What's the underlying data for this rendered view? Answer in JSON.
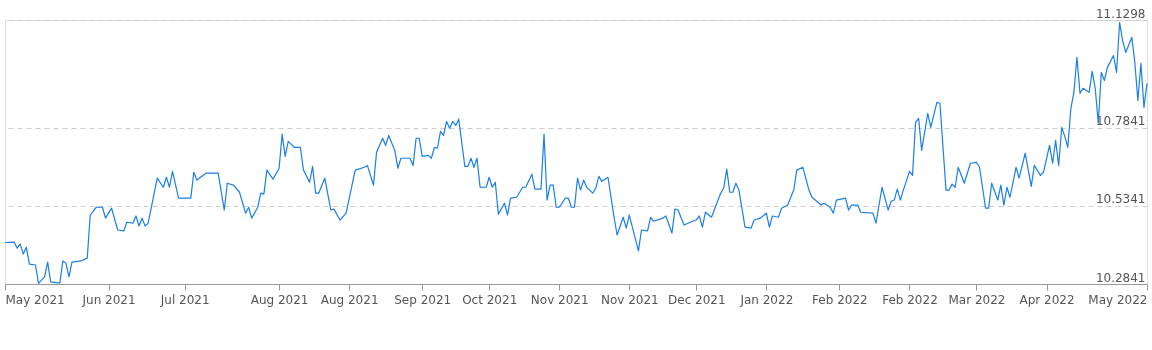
{
  "chart_data": {
    "type": "line",
    "x": [
      "2021-05-03",
      "2021-05-06",
      "2021-05-07",
      "2021-05-08",
      "2021-05-09",
      "2021-05-10",
      "2021-05-11",
      "2021-05-13",
      "2021-05-14",
      "2021-05-16",
      "2021-05-17",
      "2021-05-18",
      "2021-05-21",
      "2021-05-22",
      "2021-05-23",
      "2021-05-24",
      "2021-05-25",
      "2021-05-28",
      "2021-05-30",
      "2021-05-31",
      "2021-06-02",
      "2021-06-04",
      "2021-06-05",
      "2021-06-07",
      "2021-06-09",
      "2021-06-11",
      "2021-06-12",
      "2021-06-14",
      "2021-06-15",
      "2021-06-16",
      "2021-06-17",
      "2021-06-18",
      "2021-06-19",
      "2021-06-22",
      "2021-06-24",
      "2021-06-25",
      "2021-06-26",
      "2021-06-27",
      "2021-06-29",
      "2021-07-01",
      "2021-07-03",
      "2021-07-04",
      "2021-07-05",
      "2021-07-08",
      "2021-07-10",
      "2021-07-12",
      "2021-07-14",
      "2021-07-15",
      "2021-07-17",
      "2021-07-19",
      "2021-07-21",
      "2021-07-22",
      "2021-07-23",
      "2021-07-25",
      "2021-07-26",
      "2021-07-27",
      "2021-07-28",
      "2021-07-30",
      "2021-08-01",
      "2021-08-02",
      "2021-08-03",
      "2021-08-04",
      "2021-08-06",
      "2021-08-08",
      "2021-08-09",
      "2021-08-11",
      "2021-08-12",
      "2021-08-13",
      "2021-08-14",
      "2021-08-16",
      "2021-08-18",
      "2021-08-19",
      "2021-08-21",
      "2021-08-23",
      "2021-08-26",
      "2021-08-29",
      "2021-08-30",
      "2021-09-01",
      "2021-09-02",
      "2021-09-04",
      "2021-09-05",
      "2021-09-06",
      "2021-09-08",
      "2021-09-09",
      "2021-09-10",
      "2021-09-13",
      "2021-09-14",
      "2021-09-15",
      "2021-09-16",
      "2021-09-17",
      "2021-09-19",
      "2021-09-20",
      "2021-09-21",
      "2021-09-22",
      "2021-09-23",
      "2021-09-24",
      "2021-09-25",
      "2021-09-26",
      "2021-09-27",
      "2021-09-28",
      "2021-09-29",
      "2021-10-01",
      "2021-10-02",
      "2021-10-03",
      "2021-10-04",
      "2021-10-05",
      "2021-10-06",
      "2021-10-08",
      "2021-10-09",
      "2021-10-10",
      "2021-10-11",
      "2021-10-12",
      "2021-10-14",
      "2021-10-15",
      "2021-10-16",
      "2021-10-18",
      "2021-10-20",
      "2021-10-21",
      "2021-10-23",
      "2021-10-24",
      "2021-10-26",
      "2021-10-27",
      "2021-10-28",
      "2021-10-29",
      "2021-10-30",
      "2021-10-31",
      "2021-11-01",
      "2021-11-03",
      "2021-11-04",
      "2021-11-05",
      "2021-11-06",
      "2021-11-07",
      "2021-11-08",
      "2021-11-09",
      "2021-11-10",
      "2021-11-12",
      "2021-11-13",
      "2021-11-14",
      "2021-11-15",
      "2021-11-17",
      "2021-11-19",
      "2021-11-20",
      "2021-11-22",
      "2021-11-23",
      "2021-11-24",
      "2021-11-27",
      "2021-11-28",
      "2021-11-30",
      "2021-12-01",
      "2021-12-02",
      "2021-12-05",
      "2021-12-06",
      "2021-12-08",
      "2021-12-09",
      "2021-12-10",
      "2021-12-12",
      "2021-12-14",
      "2021-12-16",
      "2021-12-17",
      "2021-12-18",
      "2021-12-19",
      "2021-12-21",
      "2021-12-24",
      "2021-12-25",
      "2021-12-26",
      "2021-12-27",
      "2021-12-28",
      "2021-12-29",
      "2021-12-30",
      "2022-01-01",
      "2022-01-03",
      "2022-01-04",
      "2022-01-06",
      "2022-01-08",
      "2022-01-09",
      "2022-01-10",
      "2022-01-12",
      "2022-01-13",
      "2022-01-15",
      "2022-01-17",
      "2022-01-18",
      "2022-01-20",
      "2022-01-22",
      "2022-01-23",
      "2022-01-26",
      "2022-01-27",
      "2022-01-29",
      "2022-01-30",
      "2022-01-31",
      "2022-02-03",
      "2022-02-04",
      "2022-02-05",
      "2022-02-07",
      "2022-02-08",
      "2022-02-12",
      "2022-02-13",
      "2022-02-15",
      "2022-02-17",
      "2022-02-18",
      "2022-02-19",
      "2022-02-20",
      "2022-02-21",
      "2022-02-22",
      "2022-02-24",
      "2022-02-25",
      "2022-02-26",
      "2022-02-27",
      "2022-02-28",
      "2022-03-02",
      "2022-03-03",
      "2022-03-05",
      "2022-03-06",
      "2022-03-08",
      "2022-03-09",
      "2022-03-10",
      "2022-03-11",
      "2022-03-12",
      "2022-03-14",
      "2022-03-15",
      "2022-03-16",
      "2022-03-18",
      "2022-03-19",
      "2022-03-21",
      "2022-03-22",
      "2022-03-23",
      "2022-03-25",
      "2022-03-26",
      "2022-03-27",
      "2022-03-28",
      "2022-03-29",
      "2022-03-31",
      "2022-04-01",
      "2022-04-03",
      "2022-04-05",
      "2022-04-06",
      "2022-04-08",
      "2022-04-09",
      "2022-04-11",
      "2022-04-12",
      "2022-04-13",
      "2022-04-14",
      "2022-04-15",
      "2022-04-16",
      "2022-04-17",
      "2022-04-18",
      "2022-04-19",
      "2022-04-20",
      "2022-04-21",
      "2022-04-22",
      "2022-04-24",
      "2022-04-25",
      "2022-04-26",
      "2022-04-27",
      "2022-04-28",
      "2022-04-29",
      "2022-04-30",
      "2022-05-02",
      "2022-05-03",
      "2022-05-04",
      "2022-05-05",
      "2022-05-06",
      "2022-05-08",
      "2022-05-09",
      "2022-05-10",
      "2022-05-11",
      "2022-05-12",
      "2022-05-13"
    ],
    "series": [
      {
        "color": "#1a7fe8",
        "values": [
          10.417,
          10.418,
          10.399,
          10.412,
          10.38,
          10.402,
          10.348,
          10.345,
          10.286,
          10.307,
          10.354,
          10.291,
          10.287,
          10.358,
          10.351,
          10.307,
          10.354,
          10.358,
          10.367,
          10.505,
          10.53,
          10.53,
          10.495,
          10.527,
          10.457,
          10.454,
          10.482,
          10.479,
          10.502,
          10.47,
          10.495,
          10.47,
          10.479,
          10.623,
          10.594,
          10.626,
          10.594,
          10.645,
          10.559,
          10.559,
          10.559,
          10.642,
          10.617,
          10.639,
          10.639,
          10.639,
          10.521,
          10.607,
          10.601,
          10.578,
          10.511,
          10.53,
          10.495,
          10.53,
          10.575,
          10.572,
          10.649,
          10.62,
          10.655,
          10.764,
          10.693,
          10.741,
          10.722,
          10.722,
          10.649,
          10.61,
          10.661,
          10.575,
          10.575,
          10.623,
          10.521,
          10.524,
          10.489,
          10.511,
          10.649,
          10.658,
          10.664,
          10.601,
          10.706,
          10.751,
          10.728,
          10.76,
          10.712,
          10.655,
          10.687,
          10.687,
          10.664,
          10.751,
          10.751,
          10.693,
          10.696,
          10.687,
          10.722,
          10.719,
          10.773,
          10.76,
          10.805,
          10.783,
          10.805,
          10.792,
          10.812,
          10.661,
          10.661,
          10.687,
          10.658,
          10.687,
          10.594,
          10.594,
          10.626,
          10.594,
          10.61,
          10.508,
          10.543,
          10.505,
          10.559,
          10.562,
          10.594,
          10.594,
          10.636,
          10.588,
          10.588,
          10.764,
          10.553,
          10.601,
          10.601,
          10.53,
          10.53,
          10.559,
          10.559,
          10.53,
          10.53,
          10.623,
          10.585,
          10.617,
          10.594,
          10.575,
          10.591,
          10.629,
          10.613,
          10.626,
          10.498,
          10.441,
          10.498,
          10.463,
          10.505,
          10.39,
          10.457,
          10.454,
          10.498,
          10.485,
          10.495,
          10.502,
          10.447,
          10.524,
          10.521,
          10.473,
          10.482,
          10.489,
          10.502,
          10.466,
          10.514,
          10.498,
          10.575,
          10.591,
          10.652,
          10.578,
          10.578,
          10.607,
          10.585,
          10.466,
          10.463,
          10.489,
          10.495,
          10.511,
          10.466,
          10.502,
          10.498,
          10.527,
          10.537,
          10.585,
          10.649,
          10.658,
          10.585,
          10.562,
          10.537,
          10.543,
          10.53,
          10.511,
          10.553,
          10.559,
          10.521,
          10.537,
          10.537,
          10.514,
          10.511,
          10.479,
          10.594,
          10.521,
          10.549,
          10.553,
          10.588,
          10.553,
          10.585,
          10.645,
          10.632,
          10.802,
          10.815,
          10.712,
          10.831,
          10.786,
          10.866,
          10.863,
          10.585,
          10.585,
          10.604,
          10.594,
          10.658,
          10.607,
          10.639,
          10.671,
          10.674,
          10.658,
          10.527,
          10.527,
          10.607,
          10.553,
          10.601,
          10.537,
          10.594,
          10.562,
          10.658,
          10.623,
          10.703,
          10.597,
          10.664,
          10.632,
          10.642,
          10.728,
          10.671,
          10.744,
          10.664,
          10.786,
          10.757,
          10.722,
          10.847,
          10.898,
          11.01,
          10.895,
          10.911,
          10.898,
          10.965,
          10.911,
          10.799,
          10.962,
          10.936,
          10.978,
          11.016,
          10.962,
          11.122,
          11.064,
          11.026,
          11.074,
          10.994,
          10.872,
          10.991,
          10.85,
          10.927
        ]
      }
    ],
    "xlim": [
      "2021-05-03",
      "2022-05-13"
    ],
    "xticks": [
      {
        "value": "2021-05-03",
        "label": "May 2021"
      },
      {
        "value": "2021-06-06",
        "label": "Jun 2021"
      },
      {
        "value": "2021-07-01",
        "label": "Jul 2021"
      },
      {
        "value": "2021-08-01",
        "label": "Aug 2021"
      },
      {
        "value": "2021-08-24",
        "label": "Aug 2021"
      },
      {
        "value": "2021-09-17",
        "label": "Sep 2021"
      },
      {
        "value": "2021-10-09",
        "label": "Oct 2021"
      },
      {
        "value": "2021-11-01",
        "label": "Nov 2021"
      },
      {
        "value": "2021-11-24",
        "label": "Nov 2021"
      },
      {
        "value": "2021-12-16",
        "label": "Dec 2021"
      },
      {
        "value": "2022-01-08",
        "label": "Jan 2022"
      },
      {
        "value": "2022-02-01",
        "label": "Feb 2022"
      },
      {
        "value": "2022-02-24",
        "label": "Feb 2022"
      },
      {
        "value": "2022-03-18",
        "label": "Mar 2022"
      },
      {
        "value": "2022-04-10",
        "label": "Apr 2022"
      },
      {
        "value": "2022-05-13",
        "label": "May 2022"
      }
    ],
    "ylim": [
      10.2841,
      11.1298
    ],
    "yticks": [
      10.2841,
      10.5341,
      10.7841,
      11.1298
    ],
    "grid": "y",
    "line_style": "solid",
    "marker": "none"
  }
}
